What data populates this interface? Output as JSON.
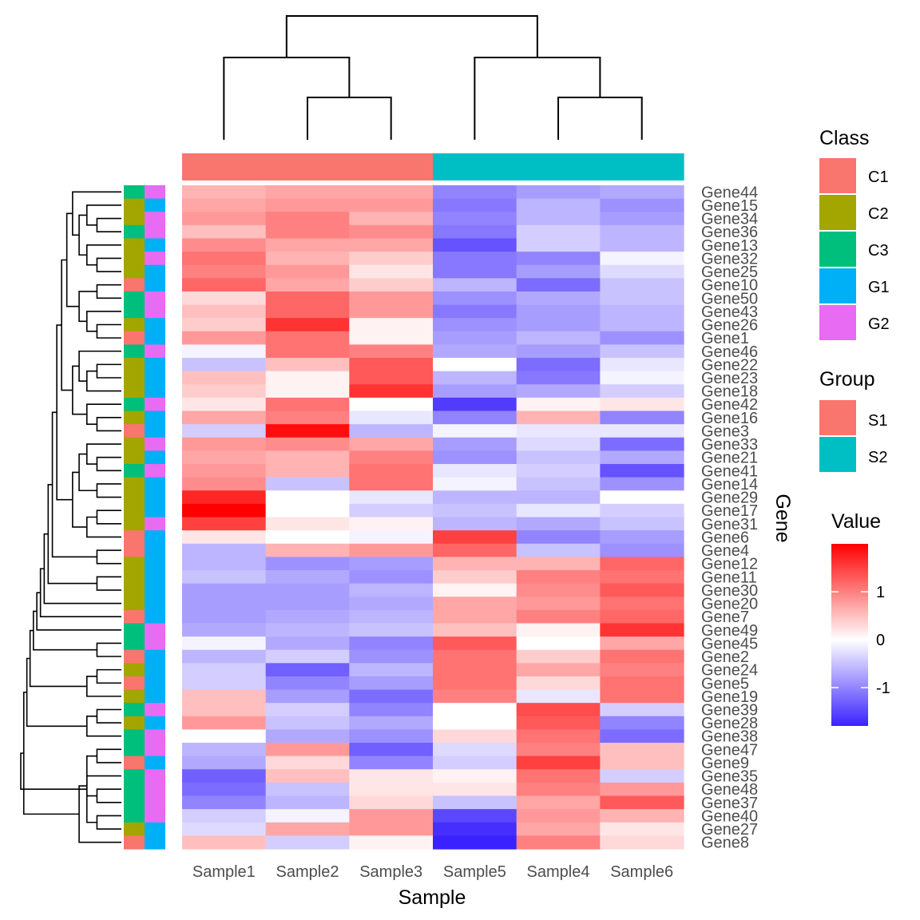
{
  "chart_data": {
    "type": "heatmap",
    "xlabel": "Sample",
    "ylabel": "Gene",
    "samples": [
      "Sample1",
      "Sample2",
      "Sample3",
      "Sample5",
      "Sample4",
      "Sample6"
    ],
    "genes": [
      "Gene44",
      "Gene15",
      "Gene34",
      "Gene36",
      "Gene13",
      "Gene32",
      "Gene25",
      "Gene10",
      "Gene50",
      "Gene43",
      "Gene26",
      "Gene1",
      "Gene46",
      "Gene22",
      "Gene23",
      "Gene18",
      "Gene42",
      "Gene16",
      "Gene3",
      "Gene33",
      "Gene21",
      "Gene41",
      "Gene14",
      "Gene29",
      "Gene17",
      "Gene31",
      "Gene6",
      "Gene4",
      "Gene12",
      "Gene11",
      "Gene30",
      "Gene20",
      "Gene7",
      "Gene49",
      "Gene45",
      "Gene2",
      "Gene24",
      "Gene5",
      "Gene19",
      "Gene39",
      "Gene28",
      "Gene38",
      "Gene47",
      "Gene9",
      "Gene35",
      "Gene48",
      "Gene37",
      "Gene40",
      "Gene27",
      "Gene8"
    ],
    "values": [
      [
        0.6,
        0.7,
        0.7,
        -1.0,
        -0.8,
        -0.7
      ],
      [
        0.7,
        0.8,
        0.8,
        -1.1,
        -0.6,
        -0.9
      ],
      [
        0.8,
        1.0,
        0.6,
        -1.0,
        -0.6,
        -0.8
      ],
      [
        0.5,
        1.0,
        0.9,
        -1.1,
        -0.4,
        -0.6
      ],
      [
        0.9,
        0.7,
        0.7,
        -1.4,
        -0.4,
        -0.6
      ],
      [
        1.1,
        0.6,
        0.4,
        -1.1,
        -1.0,
        -0.1
      ],
      [
        1.0,
        0.8,
        0.2,
        -1.1,
        -0.8,
        -0.3
      ],
      [
        1.2,
        0.7,
        0.4,
        -0.6,
        -1.2,
        -0.5
      ],
      [
        0.3,
        1.2,
        0.8,
        -0.9,
        -0.7,
        -0.5
      ],
      [
        0.5,
        1.2,
        0.8,
        -1.1,
        -0.8,
        -0.6
      ],
      [
        0.4,
        1.6,
        0.1,
        -0.9,
        -0.8,
        -0.6
      ],
      [
        0.8,
        1.1,
        0.1,
        -0.8,
        -0.6,
        -0.9
      ],
      [
        -0.1,
        1.1,
        1.0,
        -0.7,
        -0.8,
        -0.5
      ],
      [
        -0.5,
        0.5,
        1.3,
        0.0,
        -1.2,
        -0.2
      ],
      [
        0.5,
        0.1,
        1.3,
        -0.6,
        -1.1,
        -0.1
      ],
      [
        0.4,
        0.1,
        1.6,
        -0.8,
        -0.7,
        -0.4
      ],
      [
        0.2,
        1.1,
        0.0,
        -1.6,
        0.1,
        0.2
      ],
      [
        0.7,
        1.0,
        -0.2,
        -1.0,
        0.6,
        -1.0
      ],
      [
        -0.4,
        1.9,
        -0.6,
        -0.1,
        -0.2,
        -0.2
      ],
      [
        0.8,
        0.9,
        0.7,
        -0.8,
        -0.3,
        -1.2
      ],
      [
        0.7,
        0.6,
        1.0,
        -0.9,
        -0.5,
        -0.7
      ],
      [
        0.8,
        0.6,
        1.1,
        -0.2,
        -0.4,
        -1.4
      ],
      [
        0.9,
        -0.5,
        1.1,
        -0.1,
        -0.5,
        -0.9
      ],
      [
        1.7,
        0.0,
        -0.2,
        -0.6,
        -0.6,
        0.0
      ],
      [
        2.0,
        0.0,
        -0.4,
        -0.5,
        -0.2,
        -0.4
      ],
      [
        1.5,
        0.2,
        0.1,
        -0.6,
        -0.7,
        -0.5
      ],
      [
        0.2,
        0.0,
        -0.1,
        1.5,
        -1.0,
        -0.8
      ],
      [
        -0.6,
        0.6,
        0.8,
        1.2,
        -0.5,
        -0.9
      ],
      [
        -0.6,
        -0.9,
        -0.8,
        0.6,
        0.6,
        1.2
      ],
      [
        -0.5,
        -0.7,
        -0.9,
        0.4,
        1.0,
        1.1
      ],
      [
        -0.8,
        -0.8,
        -0.6,
        0.1,
        0.9,
        1.3
      ],
      [
        -0.8,
        -0.8,
        -0.7,
        0.7,
        0.8,
        1.1
      ],
      [
        -0.8,
        -0.7,
        -0.6,
        0.7,
        1.0,
        1.2
      ],
      [
        -0.7,
        -0.6,
        -0.5,
        0.5,
        0.1,
        1.6
      ],
      [
        -0.1,
        -0.7,
        -1.0,
        1.3,
        0.0,
        0.7
      ],
      [
        -0.6,
        -0.4,
        -0.9,
        1.1,
        0.4,
        1.1
      ],
      [
        -0.4,
        -1.3,
        -0.6,
        1.1,
        0.7,
        1.0
      ],
      [
        -0.4,
        -1.0,
        -0.8,
        1.1,
        0.3,
        1.1
      ],
      [
        0.5,
        -0.8,
        -1.2,
        1.0,
        -0.2,
        1.1
      ],
      [
        0.5,
        -0.4,
        -1.0,
        0.0,
        1.4,
        -0.4
      ],
      [
        0.8,
        -0.5,
        -0.7,
        0.0,
        1.3,
        -1.0
      ],
      [
        0.0,
        -0.7,
        -0.9,
        0.3,
        1.1,
        -1.2
      ],
      [
        -0.6,
        0.8,
        -1.3,
        -0.3,
        1.0,
        0.5
      ],
      [
        -0.7,
        0.3,
        -1.0,
        -0.4,
        1.5,
        0.5
      ],
      [
        -1.3,
        0.5,
        0.2,
        0.1,
        1.1,
        -0.4
      ],
      [
        -1.2,
        -0.5,
        0.2,
        0.2,
        1.0,
        0.8
      ],
      [
        -1.0,
        -0.6,
        0.3,
        -0.5,
        0.7,
        1.3
      ],
      [
        -0.4,
        -0.1,
        0.8,
        -1.5,
        0.8,
        0.6
      ],
      [
        -0.3,
        0.7,
        0.8,
        -1.7,
        0.7,
        0.2
      ],
      [
        0.5,
        -0.4,
        0.1,
        -1.8,
        1.0,
        0.3
      ]
    ],
    "row_annotations": {
      "Class": [
        "C3",
        "C2",
        "C2",
        "C3",
        "C2",
        "C2",
        "C2",
        "C1",
        "C3",
        "C3",
        "C2",
        "C1",
        "C3",
        "C2",
        "C2",
        "C2",
        "C3",
        "C2",
        "C1",
        "C2",
        "C2",
        "C3",
        "C2",
        "C2",
        "C2",
        "C2",
        "C1",
        "C1",
        "C2",
        "C2",
        "C2",
        "C2",
        "C1",
        "C3",
        "C3",
        "C1",
        "C2",
        "C1",
        "C2",
        "C3",
        "C2",
        "C3",
        "C3",
        "C1",
        "C3",
        "C3",
        "C3",
        "C3",
        "C2",
        "C1"
      ],
      "Group": [
        "G2",
        "G1",
        "G2",
        "G2",
        "G1",
        "G2",
        "G1",
        "G1",
        "G2",
        "G2",
        "G1",
        "G1",
        "G2",
        "G1",
        "G1",
        "G1",
        "G2",
        "G1",
        "G1",
        "G2",
        "G1",
        "G2",
        "G1",
        "G1",
        "G1",
        "G2",
        "G1",
        "G1",
        "G1",
        "G1",
        "G1",
        "G1",
        "G1",
        "G2",
        "G2",
        "G1",
        "G1",
        "G1",
        "G1",
        "G2",
        "G1",
        "G2",
        "G2",
        "G1",
        "G2",
        "G2",
        "G2",
        "G2",
        "G1",
        "G1"
      ]
    },
    "column_annotation": {
      "Group": [
        "S1",
        "S1",
        "S1",
        "S2",
        "S2",
        "S2"
      ]
    },
    "color_scale": {
      "low": "#3a22ff",
      "mid": "#ffffff",
      "high": "#ff0000",
      "limits": [
        -1.8,
        2.0
      ],
      "breaks": [
        1,
        0,
        -1
      ],
      "labels": [
        "1",
        "0",
        "-1"
      ]
    },
    "legends": {
      "class": {
        "title": "Class",
        "entries": [
          {
            "label": "C1",
            "color": "#F8766D"
          },
          {
            "label": "C2",
            "color": "#A3A500"
          },
          {
            "label": "C3",
            "color": "#00BF7D"
          },
          {
            "label": "G1",
            "color": "#00B0F6"
          },
          {
            "label": "G2",
            "color": "#E76BF3"
          }
        ]
      },
      "group": {
        "title": "Group",
        "entries": [
          {
            "label": "S1",
            "color": "#F8766D"
          },
          {
            "label": "S2",
            "color": "#00BFC4"
          }
        ]
      },
      "value": {
        "title": "Value"
      }
    },
    "col_dendrogram": [
      [
        1,
        2
      ],
      [
        0,
        -1
      ],
      [
        4,
        5
      ],
      [
        3,
        -3
      ],
      [
        -2,
        -4
      ]
    ],
    "row_dendrogram": [
      [
        2,
        3
      ],
      [
        1,
        -1
      ],
      [
        5,
        6
      ],
      [
        4,
        -3
      ],
      [
        -2,
        -4
      ],
      [
        0,
        -5
      ],
      [
        7,
        8
      ],
      [
        10,
        11
      ],
      [
        9,
        -8
      ],
      [
        -7,
        -9
      ],
      [
        -6,
        -10
      ],
      [
        13,
        14
      ],
      [
        -12,
        15
      ],
      [
        12,
        -13
      ],
      [
        17,
        18
      ],
      [
        16,
        -15
      ],
      [
        -14,
        -16
      ],
      [
        -11,
        -17
      ],
      [
        20,
        21
      ],
      [
        19,
        -19
      ],
      [
        22,
        23
      ],
      [
        -20,
        -21
      ],
      [
        24,
        25
      ],
      [
        -23,
        26
      ],
      [
        -22,
        -24
      ],
      [
        27,
        28
      ],
      [
        -18,
        -25
      ],
      [
        -26,
        -27
      ],
      [
        29,
        30
      ],
      [
        -28,
        -29
      ],
      [
        -30,
        31
      ],
      [
        32,
        -31
      ],
      [
        -32,
        33
      ],
      [
        34,
        35
      ],
      [
        -33,
        -34
      ],
      [
        36,
        37
      ],
      [
        38,
        -36
      ],
      [
        -35,
        -37
      ],
      [
        39,
        40
      ],
      [
        -39,
        41
      ],
      [
        -38,
        -40
      ],
      [
        42,
        43
      ],
      [
        45,
        46
      ],
      [
        44,
        -43
      ],
      [
        47,
        48
      ],
      [
        -44,
        49
      ],
      [
        -42,
        -45
      ],
      [
        -41,
        -46
      ],
      [
        -47,
        -48
      ]
    ]
  }
}
